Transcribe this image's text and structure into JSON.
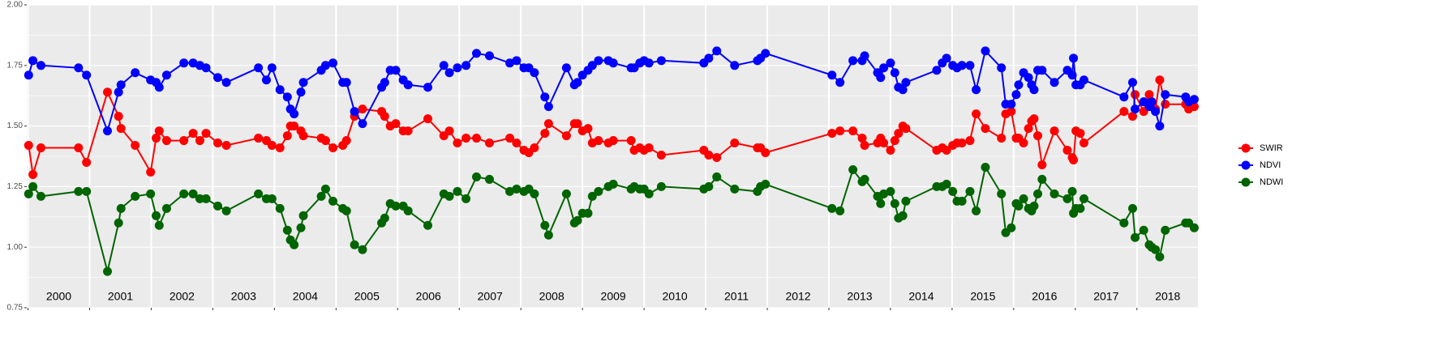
{
  "chart_data": {
    "type": "line",
    "x": [
      2000.01,
      2000.08,
      2000.21,
      2000.82,
      2000.95,
      2001.29,
      2001.47,
      2001.51,
      2001.74,
      2001.99,
      2002.08,
      2002.13,
      2002.25,
      2002.53,
      2002.68,
      2002.79,
      2002.89,
      2003.08,
      2003.22,
      2003.74,
      2003.87,
      2003.96,
      2004.09,
      2004.21,
      2004.26,
      2004.32,
      2004.43,
      2004.47,
      2004.76,
      2004.83,
      2004.95,
      2005.11,
      2005.17,
      2005.3,
      2005.43,
      2005.74,
      2005.79,
      2005.88,
      2005.97,
      2006.09,
      2006.17,
      2006.49,
      2006.75,
      2006.84,
      2006.97,
      2007.11,
      2007.28,
      2007.49,
      2007.82,
      2007.93,
      2008.05,
      2008.13,
      2008.22,
      2008.39,
      2008.45,
      2008.74,
      2008.87,
      2008.92,
      2009.0,
      2009.09,
      2009.16,
      2009.26,
      2009.42,
      2009.5,
      2009.79,
      2009.84,
      2009.93,
      2010.0,
      2010.08,
      2010.28,
      2010.97,
      2011.05,
      2011.18,
      2011.47,
      2011.84,
      2011.89,
      2011.97,
      2013.05,
      2013.18,
      2013.39,
      2013.54,
      2013.58,
      2013.79,
      2013.84,
      2013.89,
      2014.0,
      2014.07,
      2014.13,
      2014.2,
      2014.25,
      2014.75,
      2014.84,
      2014.91,
      2015.01,
      2015.08,
      2015.16,
      2015.29,
      2015.39,
      2015.54,
      2015.8,
      2015.87,
      2015.96,
      2016.04,
      2016.08,
      2016.16,
      2016.24,
      2016.29,
      2016.33,
      2016.39,
      2016.46,
      2016.66,
      2016.87,
      2016.95,
      2016.97,
      2017.01,
      2017.08,
      2017.14,
      2017.79,
      2017.93,
      2017.97,
      2018.11,
      2018.2,
      2018.24,
      2018.3,
      2018.37,
      2018.46,
      2018.79,
      2018.84,
      2018.93
    ],
    "series": [
      {
        "name": "SWIR",
        "color": "#ff0000",
        "values": [
          1.42,
          1.3,
          1.41,
          1.41,
          1.35,
          1.64,
          1.54,
          1.49,
          1.42,
          1.31,
          1.45,
          1.48,
          1.44,
          1.44,
          1.47,
          1.44,
          1.47,
          1.43,
          1.42,
          1.45,
          1.44,
          1.42,
          1.41,
          1.46,
          1.5,
          1.5,
          1.48,
          1.46,
          1.45,
          1.44,
          1.41,
          1.42,
          1.44,
          1.54,
          1.57,
          1.56,
          1.54,
          1.5,
          1.51,
          1.48,
          1.48,
          1.53,
          1.46,
          1.48,
          1.43,
          1.45,
          1.45,
          1.43,
          1.45,
          1.43,
          1.4,
          1.39,
          1.41,
          1.47,
          1.51,
          1.46,
          1.51,
          1.51,
          1.48,
          1.49,
          1.43,
          1.44,
          1.43,
          1.44,
          1.44,
          1.4,
          1.41,
          1.4,
          1.41,
          1.38,
          1.4,
          1.38,
          1.37,
          1.43,
          1.41,
          1.41,
          1.39,
          1.47,
          1.48,
          1.48,
          1.45,
          1.42,
          1.43,
          1.45,
          1.43,
          1.4,
          1.44,
          1.47,
          1.5,
          1.49,
          1.4,
          1.41,
          1.4,
          1.42,
          1.43,
          1.43,
          1.44,
          1.55,
          1.49,
          1.45,
          1.55,
          1.56,
          1.45,
          1.45,
          1.43,
          1.49,
          1.52,
          1.53,
          1.46,
          1.34,
          1.48,
          1.4,
          1.37,
          1.36,
          1.48,
          1.47,
          1.43,
          1.56,
          1.54,
          1.63,
          1.56,
          1.63,
          1.58,
          1.57,
          1.69,
          1.59,
          1.59,
          1.57,
          1.58
        ]
      },
      {
        "name": "NDVI",
        "color": "#0000ff",
        "values": [
          1.71,
          1.77,
          1.75,
          1.74,
          1.71,
          1.48,
          1.64,
          1.67,
          1.72,
          1.69,
          1.68,
          1.66,
          1.71,
          1.76,
          1.76,
          1.75,
          1.74,
          1.7,
          1.68,
          1.74,
          1.69,
          1.74,
          1.65,
          1.62,
          1.57,
          1.55,
          1.64,
          1.68,
          1.73,
          1.75,
          1.76,
          1.68,
          1.68,
          1.56,
          1.51,
          1.66,
          1.68,
          1.73,
          1.73,
          1.69,
          1.67,
          1.66,
          1.75,
          1.72,
          1.74,
          1.75,
          1.8,
          1.79,
          1.76,
          1.77,
          1.74,
          1.74,
          1.72,
          1.62,
          1.58,
          1.74,
          1.67,
          1.68,
          1.71,
          1.73,
          1.75,
          1.77,
          1.77,
          1.76,
          1.74,
          1.74,
          1.76,
          1.77,
          1.76,
          1.77,
          1.76,
          1.78,
          1.81,
          1.75,
          1.77,
          1.78,
          1.8,
          1.71,
          1.68,
          1.77,
          1.77,
          1.79,
          1.72,
          1.7,
          1.74,
          1.76,
          1.72,
          1.66,
          1.65,
          1.68,
          1.73,
          1.76,
          1.78,
          1.75,
          1.74,
          1.75,
          1.75,
          1.65,
          1.81,
          1.74,
          1.59,
          1.59,
          1.63,
          1.67,
          1.72,
          1.7,
          1.67,
          1.65,
          1.73,
          1.73,
          1.68,
          1.73,
          1.71,
          1.78,
          1.67,
          1.67,
          1.69,
          1.62,
          1.68,
          1.57,
          1.6,
          1.58,
          1.6,
          1.56,
          1.5,
          1.63,
          1.62,
          1.6,
          1.61
        ]
      },
      {
        "name": "NDWI",
        "color": "#006400",
        "values": [
          1.22,
          1.25,
          1.21,
          1.23,
          1.23,
          0.9,
          1.1,
          1.16,
          1.21,
          1.22,
          1.13,
          1.09,
          1.16,
          1.22,
          1.22,
          1.2,
          1.2,
          1.17,
          1.15,
          1.22,
          1.2,
          1.2,
          1.16,
          1.07,
          1.03,
          1.01,
          1.08,
          1.13,
          1.21,
          1.24,
          1.19,
          1.16,
          1.15,
          1.01,
          0.99,
          1.1,
          1.12,
          1.18,
          1.17,
          1.17,
          1.15,
          1.09,
          1.22,
          1.21,
          1.23,
          1.2,
          1.29,
          1.28,
          1.23,
          1.24,
          1.23,
          1.24,
          1.22,
          1.09,
          1.05,
          1.22,
          1.1,
          1.11,
          1.14,
          1.14,
          1.21,
          1.23,
          1.25,
          1.26,
          1.24,
          1.25,
          1.24,
          1.24,
          1.22,
          1.25,
          1.24,
          1.25,
          1.29,
          1.24,
          1.23,
          1.25,
          1.26,
          1.16,
          1.15,
          1.32,
          1.27,
          1.28,
          1.21,
          1.18,
          1.22,
          1.23,
          1.18,
          1.12,
          1.13,
          1.19,
          1.25,
          1.25,
          1.26,
          1.23,
          1.19,
          1.19,
          1.23,
          1.15,
          1.33,
          1.22,
          1.06,
          1.08,
          1.18,
          1.17,
          1.2,
          1.16,
          1.15,
          1.17,
          1.22,
          1.28,
          1.22,
          1.2,
          1.23,
          1.14,
          1.16,
          1.16,
          1.2,
          1.1,
          1.16,
          1.04,
          1.07,
          1.01,
          1.0,
          0.99,
          0.96,
          1.07,
          1.1,
          1.1,
          1.08
        ]
      }
    ],
    "xlim": [
      1999.98,
      2018.99
    ],
    "xticks": [
      2000,
      2001,
      2002,
      2003,
      2004,
      2005,
      2006,
      2007,
      2008,
      2009,
      2010,
      2011,
      2012,
      2013,
      2014,
      2015,
      2016,
      2017,
      2018
    ],
    "ylim": [
      0.75,
      2.0
    ],
    "yticks": [
      0.75,
      {
        "value": 1.0,
        "label": "1.00"
      },
      1.25,
      {
        "value": 1.5,
        "label": "1.50"
      },
      1.75,
      {
        "value": 2.0,
        "label": "2.00"
      }
    ],
    "grid": true,
    "legend": "right"
  }
}
